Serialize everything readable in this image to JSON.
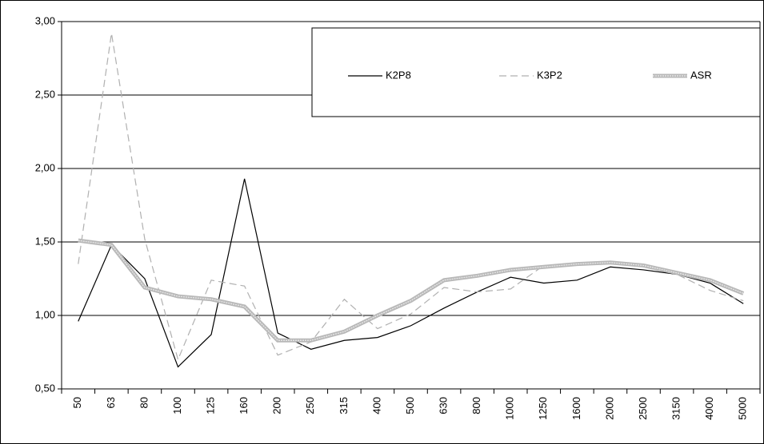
{
  "chart_data": {
    "type": "line",
    "categories": [
      "50",
      "63",
      "80",
      "100",
      "125",
      "160",
      "200",
      "250",
      "315",
      "400",
      "500",
      "630",
      "800",
      "1000",
      "1250",
      "1600",
      "2000",
      "2500",
      "3150",
      "4000",
      "5000"
    ],
    "series": [
      {
        "name": "K2P8",
        "color": "#000000",
        "line_style": "solid",
        "values": [
          0.96,
          1.48,
          1.25,
          0.65,
          0.87,
          1.93,
          0.88,
          0.77,
          0.83,
          0.85,
          0.93,
          1.05,
          1.16,
          1.26,
          1.22,
          1.24,
          1.33,
          1.31,
          1.28,
          1.22,
          1.08
        ]
      },
      {
        "name": "K3P2",
        "color": "#b0b0b0",
        "line_style": "dashed",
        "values": [
          1.35,
          2.92,
          1.52,
          0.7,
          1.24,
          1.2,
          0.73,
          0.82,
          1.11,
          0.91,
          1.01,
          1.19,
          1.16,
          1.18,
          1.34,
          1.35,
          1.36,
          1.33,
          1.28,
          1.17,
          1.1
        ]
      },
      {
        "name": "ASR",
        "color": "#b8b8b8",
        "line_style": "thick",
        "values": [
          1.51,
          1.48,
          1.19,
          1.13,
          1.11,
          1.06,
          0.83,
          0.83,
          0.89,
          1.0,
          1.1,
          1.24,
          1.27,
          1.31,
          1.33,
          1.35,
          1.36,
          1.34,
          1.29,
          1.24,
          1.15
        ]
      }
    ],
    "ylim": [
      0.5,
      3.0
    ],
    "yticks": [
      {
        "value": 0.5,
        "label": "0,50"
      },
      {
        "value": 1.0,
        "label": "1,00"
      },
      {
        "value": 1.5,
        "label": "1,50"
      },
      {
        "value": 2.0,
        "label": "2,00"
      },
      {
        "value": 2.5,
        "label": "2,50"
      },
      {
        "value": 3.0,
        "label": "3,00"
      }
    ],
    "grid": true,
    "legend": "top-right"
  }
}
